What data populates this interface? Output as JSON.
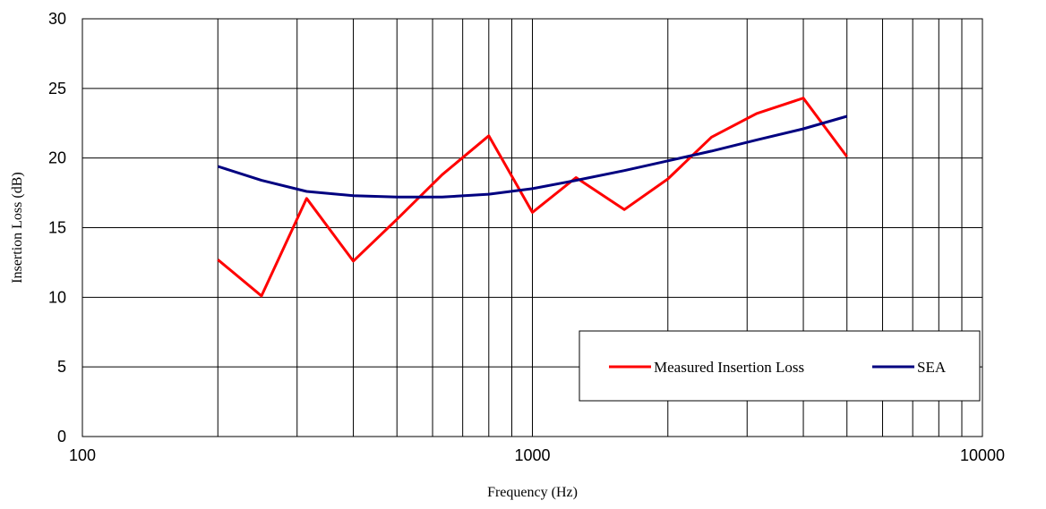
{
  "chart_data": {
    "type": "line",
    "title": "",
    "xlabel": "Frequency (Hz)",
    "ylabel": "Insertion Loss (dB)",
    "xscale": "log",
    "xlim": [
      100,
      10000
    ],
    "ylim": [
      0,
      30
    ],
    "xticks": [
      100,
      1000,
      10000
    ],
    "xtick_labels": [
      "100",
      "1000",
      "10000"
    ],
    "yticks": [
      0,
      5,
      10,
      15,
      20,
      25,
      30
    ],
    "ytick_labels": [
      "0",
      "5",
      "10",
      "15",
      "20",
      "25",
      "30"
    ],
    "grid": true,
    "legend_position": "bottom-right",
    "series": [
      {
        "name": "Measured Insertion Loss",
        "color": "#ff0000",
        "x": [
          200,
          250,
          315,
          400,
          500,
          630,
          800,
          1000,
          1250,
          1600,
          2000,
          2500,
          3150,
          4000,
          5000
        ],
        "y": [
          12.7,
          10.1,
          17.1,
          12.6,
          15.6,
          18.8,
          21.6,
          16.1,
          18.6,
          16.3,
          18.5,
          21.5,
          23.2,
          24.3,
          20.1
        ]
      },
      {
        "name": "SEA",
        "color": "#000080",
        "x": [
          200,
          250,
          315,
          400,
          500,
          630,
          800,
          1000,
          1250,
          1600,
          2000,
          2500,
          3150,
          4000,
          5000
        ],
        "y": [
          19.4,
          18.4,
          17.6,
          17.3,
          17.2,
          17.2,
          17.4,
          17.8,
          18.4,
          19.1,
          19.8,
          20.5,
          21.3,
          22.1,
          23.0
        ]
      }
    ]
  }
}
